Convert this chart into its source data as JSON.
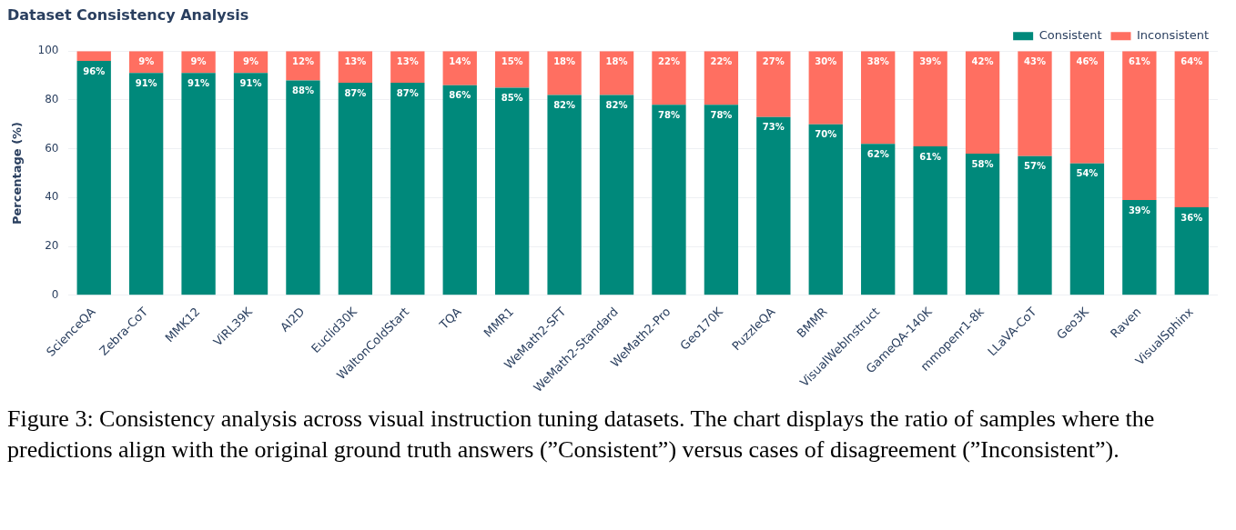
{
  "chart_data": {
    "type": "bar",
    "title": "Dataset Consistency Analysis",
    "ylabel": "Percentage (%)",
    "categories": [
      "ScienceQA",
      "Zebra-CoT",
      "MMK12",
      "ViRL39K",
      "AI2D",
      "Euclid30K",
      "WaltonColdStart",
      "TQA",
      "MMR1",
      "WeMath2-SFT",
      "WeMath2-Standard",
      "WeMath2-Pro",
      "Geo170K",
      "PuzzleQA",
      "BMMR",
      "VisualWebInstruct",
      "GameQA-140K",
      "mmopenr1-8k",
      "LLaVA-CoT",
      "Geo3K",
      "Raven",
      "VisualSphinx"
    ],
    "series": [
      {
        "name": "Consistent",
        "color": "#00897b",
        "values": [
          96,
          91,
          91,
          91,
          88,
          87,
          87,
          86,
          85,
          82,
          82,
          78,
          78,
          73,
          70,
          62,
          61,
          58,
          57,
          54,
          39,
          36
        ],
        "value_labels": [
          "96%",
          "91%",
          "91%",
          "91%",
          "88%",
          "87%",
          "87%",
          "86%",
          "85%",
          "82%",
          "82%",
          "78%",
          "78%",
          "73%",
          "70%",
          "62%",
          "61%",
          "58%",
          "57%",
          "54%",
          "39%",
          "36%"
        ]
      },
      {
        "name": "Inconsistent",
        "color": "#ff6f61",
        "values": [
          4,
          9,
          9,
          9,
          12,
          13,
          13,
          14,
          15,
          18,
          18,
          22,
          22,
          27,
          30,
          38,
          39,
          42,
          43,
          46,
          61,
          64
        ],
        "value_labels": [
          null,
          "9%",
          "9%",
          "9%",
          "12%",
          "13%",
          "13%",
          "14%",
          "15%",
          "18%",
          "18%",
          "22%",
          "22%",
          "27%",
          "30%",
          "38%",
          "39%",
          "42%",
          "43%",
          "46%",
          "61%",
          "64%"
        ]
      }
    ],
    "stacked": true,
    "ylim": [
      0,
      100
    ],
    "yticks": [
      0,
      20,
      40,
      60,
      80,
      100
    ],
    "grid": "y",
    "legend": "top right",
    "annotations": [
      "Figure 3: Consistency analysis across visual instruction tuning datasets. The chart displays the ratio of samples where the predictions align with the original ground truth answers (”Consistent”) versus cases of disagreement (”Inconsistent”)."
    ]
  }
}
